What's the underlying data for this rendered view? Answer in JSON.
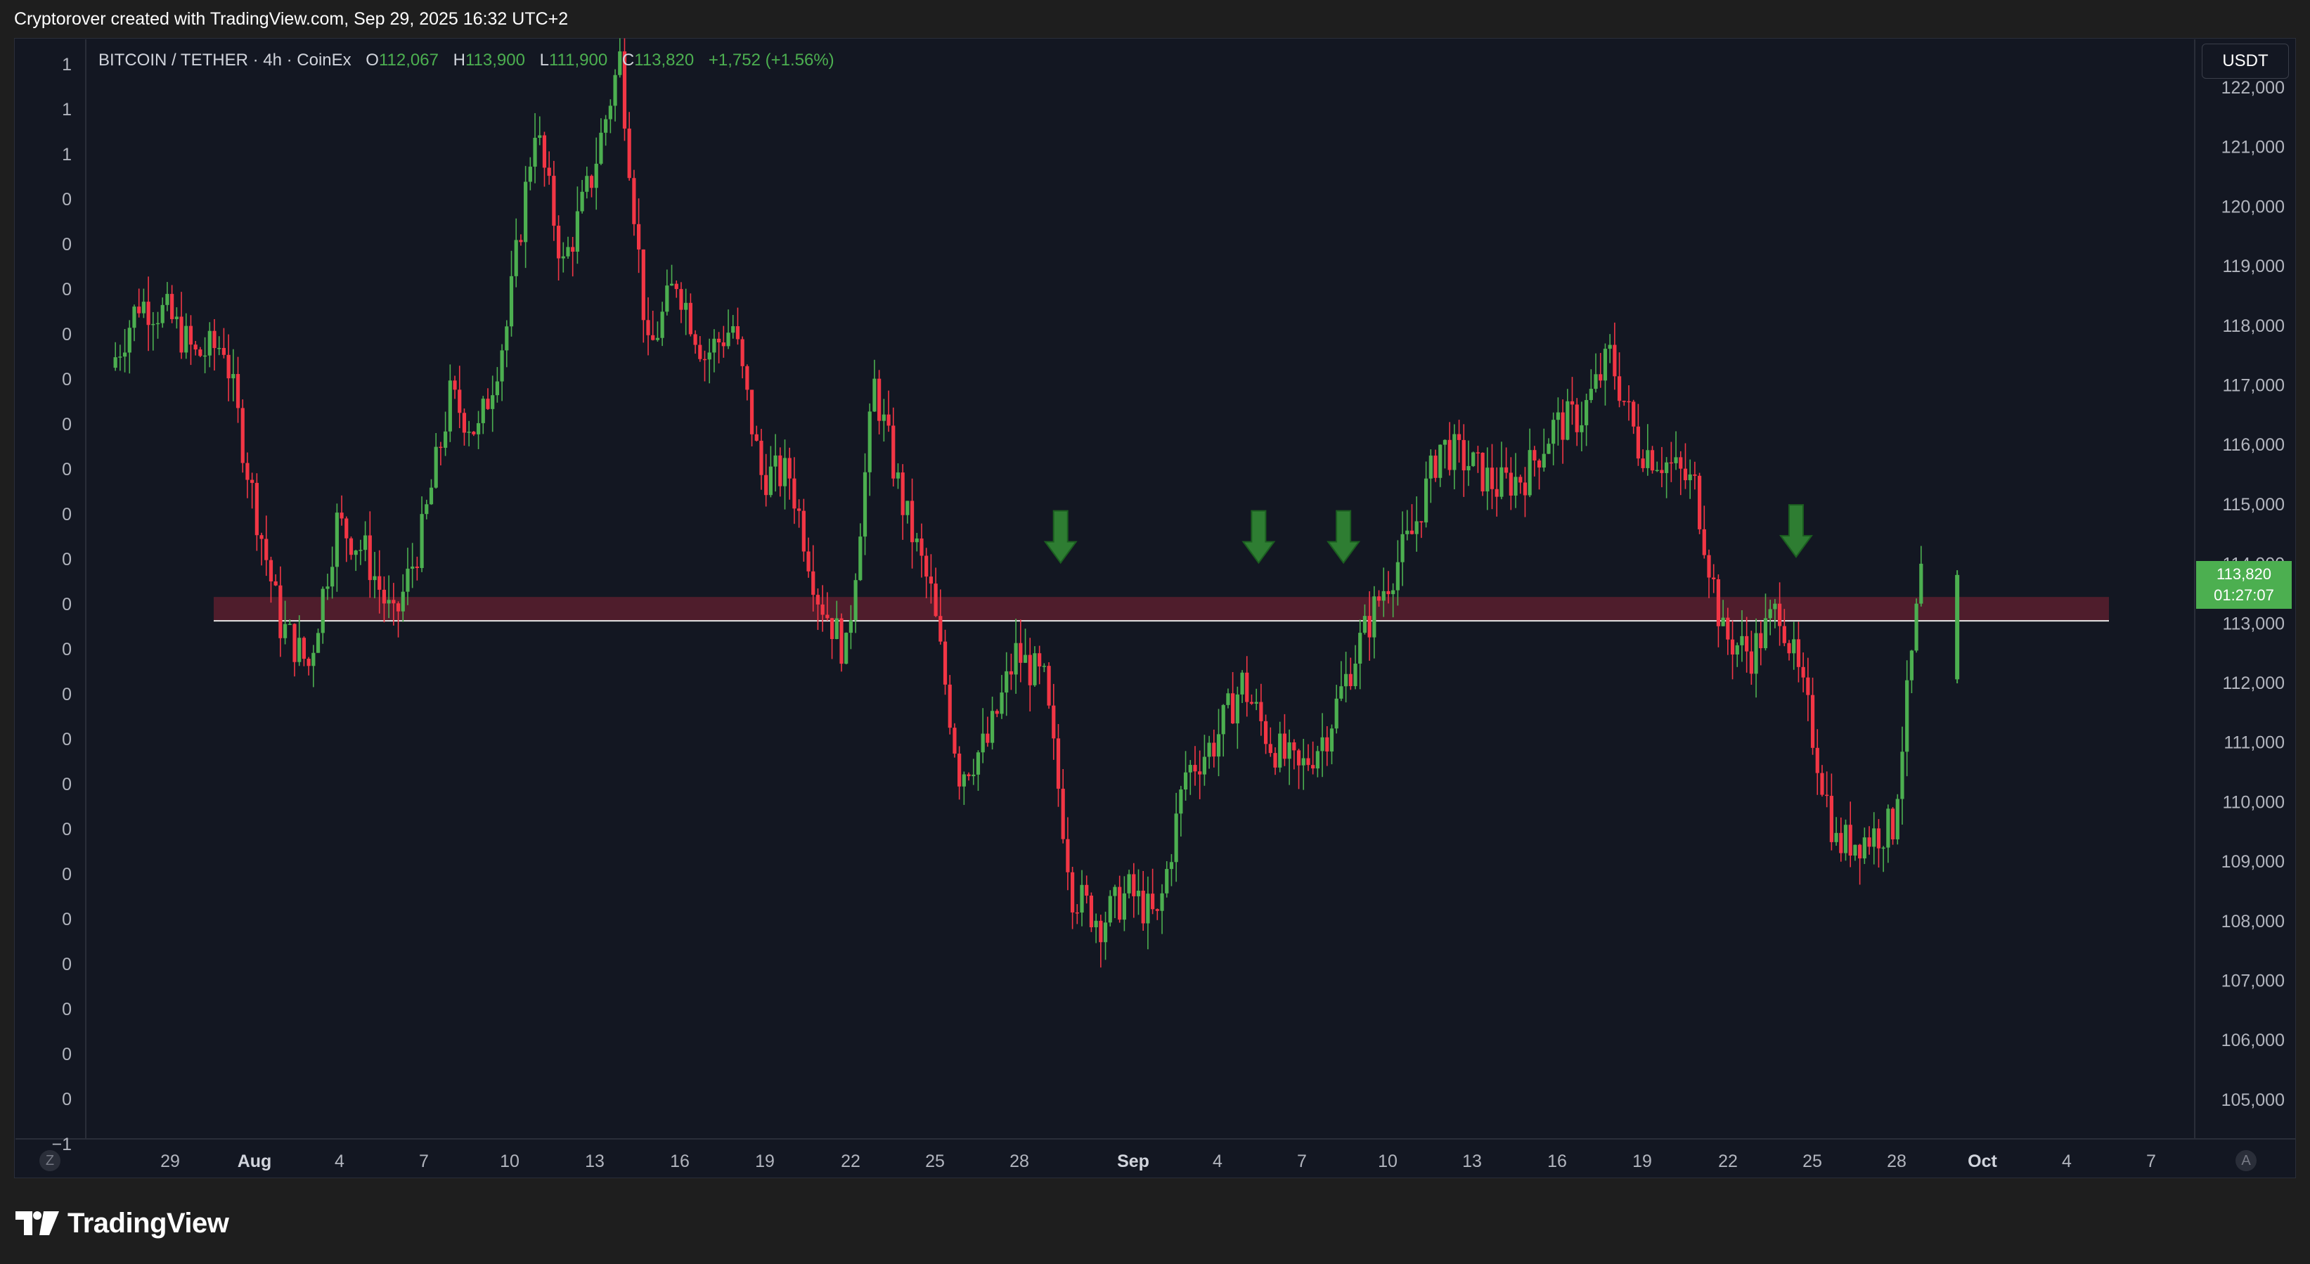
{
  "header": {
    "credit": "Cryptorover created with TradingView.com, Sep 29, 2025 16:32 UTC+2"
  },
  "legend": {
    "symbol": "BITCOIN / TETHER · 4h · CoinEx",
    "open_label": "O",
    "open": "112,067",
    "high_label": "H",
    "high": "113,900",
    "low_label": "L",
    "low": "111,900",
    "close_label": "C",
    "close": "113,820",
    "change": "+1,752 (+1.56%)"
  },
  "price_axis": {
    "unit": "USDT",
    "labels": [
      "122,000",
      "121,000",
      "120,000",
      "119,000",
      "118,000",
      "117,000",
      "116,000",
      "115,000",
      "114,000",
      "113,000",
      "112,000",
      "111,000",
      "110,000",
      "109,000",
      "108,000",
      "107,000",
      "106,000",
      "105,000"
    ]
  },
  "last_price": {
    "price": "113,820",
    "countdown": "01:27:07"
  },
  "left_axis": {
    "labels": [
      "1",
      "1",
      "1",
      "0",
      "0",
      "0",
      "0",
      "0",
      "0",
      "0",
      "0",
      "0",
      "0",
      "0",
      "0",
      "0",
      "0",
      "0",
      "0",
      "0",
      "0",
      "0",
      "0",
      "0",
      "−1"
    ]
  },
  "time_axis": {
    "labels": [
      "29",
      "Aug",
      "4",
      "7",
      "10",
      "13",
      "16",
      "19",
      "22",
      "25",
      "28",
      "Sep",
      "4",
      "7",
      "10",
      "13",
      "16",
      "19",
      "22",
      "25",
      "28",
      "Oct",
      "4",
      "7"
    ]
  },
  "controls": {
    "left_button": "Z",
    "right_button": "A"
  },
  "footer": {
    "brand": "TradingView"
  },
  "colors": {
    "up": "#4caf50",
    "down": "#f23645",
    "zone": "#5a1f2e",
    "arrow": "#2e7d32",
    "background": "#131722"
  },
  "chart_data": {
    "type": "candlestick",
    "title": "BITCOIN / TETHER · 4h · CoinEx",
    "ylabel": "USDT",
    "ylim": [
      104500,
      122400
    ],
    "interval": "4h",
    "support_zone": [
      113050,
      113450
    ],
    "support_line": 113050,
    "markers": [
      {
        "type": "arrow-down",
        "date": "Aug 29",
        "price": 114000
      },
      {
        "type": "arrow-down",
        "date": "Sep 5",
        "price": 114000
      },
      {
        "type": "arrow-down",
        "date": "Sep 8",
        "price": 114000
      },
      {
        "type": "arrow-down",
        "date": "Sep 24",
        "price": 114100
      }
    ],
    "anchors": [
      {
        "date": "Jul 27",
        "close": 117300
      },
      {
        "date": "Jul 28",
        "close": 118400
      },
      {
        "date": "Jul 29",
        "close": 118200
      },
      {
        "date": "Jul 30",
        "close": 117500
      },
      {
        "date": "Jul 31",
        "close": 117700
      },
      {
        "date": "Aug 1",
        "close": 115200
      },
      {
        "date": "Aug 2",
        "close": 113000
      },
      {
        "date": "Aug 3",
        "close": 112300
      },
      {
        "date": "Aug 4",
        "close": 114700
      },
      {
        "date": "Aug 5",
        "close": 114200
      },
      {
        "date": "Aug 6",
        "close": 113000
      },
      {
        "date": "Aug 7",
        "close": 114500
      },
      {
        "date": "Aug 8",
        "close": 116800
      },
      {
        "date": "Aug 9",
        "close": 116200
      },
      {
        "date": "Aug 10",
        "close": 118000
      },
      {
        "date": "Aug 11",
        "close": 121400
      },
      {
        "date": "Aug 12",
        "close": 119000
      },
      {
        "date": "Aug 13",
        "close": 120500
      },
      {
        "date": "Aug 14",
        "close": 122500
      },
      {
        "date": "Aug 15",
        "close": 117500
      },
      {
        "date": "Aug 16",
        "close": 118800
      },
      {
        "date": "Aug 17",
        "close": 117500
      },
      {
        "date": "Aug 18",
        "close": 118000
      },
      {
        "date": "Aug 19",
        "close": 115500
      },
      {
        "date": "Aug 20",
        "close": 115500
      },
      {
        "date": "Aug 21",
        "close": 113500
      },
      {
        "date": "Aug 22",
        "close": 112500
      },
      {
        "date": "Aug 23",
        "close": 117000
      },
      {
        "date": "Aug 24",
        "close": 115000
      },
      {
        "date": "Aug 25",
        "close": 113500
      },
      {
        "date": "Aug 26",
        "close": 110500
      },
      {
        "date": "Aug 27",
        "close": 111000
      },
      {
        "date": "Aug 28",
        "close": 112500
      },
      {
        "date": "Aug 29",
        "close": 112000
      },
      {
        "date": "Aug 30",
        "close": 108500
      },
      {
        "date": "Aug 31",
        "close": 108000
      },
      {
        "date": "Sep 1",
        "close": 108500
      },
      {
        "date": "Sep 2",
        "close": 108000
      },
      {
        "date": "Sep 3",
        "close": 110500
      },
      {
        "date": "Sep 4",
        "close": 111000
      },
      {
        "date": "Sep 5",
        "close": 112000
      },
      {
        "date": "Sep 6",
        "close": 111000
      },
      {
        "date": "Sep 7",
        "close": 110500
      },
      {
        "date": "Sep 8",
        "close": 111200
      },
      {
        "date": "Sep 9",
        "close": 112500
      },
      {
        "date": "Sep 10",
        "close": 113600
      },
      {
        "date": "Sep 11",
        "close": 114500
      },
      {
        "date": "Sep 12",
        "close": 116000
      },
      {
        "date": "Sep 13",
        "close": 115700
      },
      {
        "date": "Sep 14",
        "close": 115300
      },
      {
        "date": "Sep 15",
        "close": 115500
      },
      {
        "date": "Sep 16",
        "close": 116300
      },
      {
        "date": "Sep 17",
        "close": 116500
      },
      {
        "date": "Sep 18",
        "close": 117500
      },
      {
        "date": "Sep 19",
        "close": 116000
      },
      {
        "date": "Sep 20",
        "close": 115700
      },
      {
        "date": "Sep 21",
        "close": 115300
      },
      {
        "date": "Sep 22",
        "close": 112800
      },
      {
        "date": "Sep 23",
        "close": 112500
      },
      {
        "date": "Sep 24",
        "close": 113300
      },
      {
        "date": "Sep 25",
        "close": 111500
      },
      {
        "date": "Sep 26",
        "close": 109300
      },
      {
        "date": "Sep 27",
        "close": 109400
      },
      {
        "date": "Sep 28",
        "close": 109600
      },
      {
        "date": "Sep 29",
        "close": 113820
      }
    ]
  }
}
